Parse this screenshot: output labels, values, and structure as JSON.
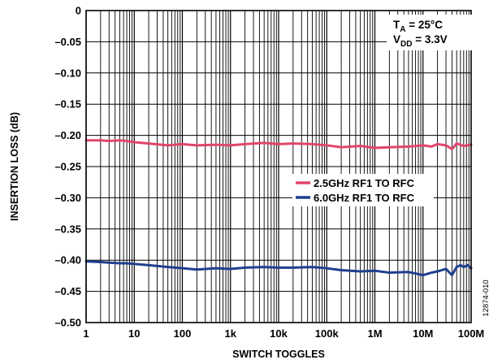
{
  "chart_data": {
    "type": "line",
    "xlabel": "SWITCH TOGGLES",
    "ylabel": "INSERTION LOSS (dB)",
    "xscale": "log",
    "xlim": [
      1,
      100000000
    ],
    "ylim": [
      -0.5,
      0
    ],
    "grid": true,
    "x_ticks": [
      {
        "value": 1,
        "label": "1"
      },
      {
        "value": 10,
        "label": "10"
      },
      {
        "value": 100,
        "label": "100"
      },
      {
        "value": 1000,
        "label": "1k"
      },
      {
        "value": 10000,
        "label": "10k"
      },
      {
        "value": 100000,
        "label": "100k"
      },
      {
        "value": 1000000,
        "label": "1M"
      },
      {
        "value": 10000000,
        "label": "10M"
      },
      {
        "value": 100000000,
        "label": "100M"
      }
    ],
    "y_ticks": [
      {
        "value": 0,
        "label": "0"
      },
      {
        "value": -0.05,
        "label": "–0.05"
      },
      {
        "value": -0.1,
        "label": "–0.10"
      },
      {
        "value": -0.15,
        "label": "–0.15"
      },
      {
        "value": -0.2,
        "label": "–0.20"
      },
      {
        "value": -0.25,
        "label": "–0.25"
      },
      {
        "value": -0.3,
        "label": "–0.30"
      },
      {
        "value": -0.35,
        "label": "–0.35"
      },
      {
        "value": -0.4,
        "label": "–0.40"
      },
      {
        "value": -0.45,
        "label": "–0.45"
      },
      {
        "value": -0.5,
        "label": "–0.50"
      }
    ],
    "annotation": {
      "line1_main": "T",
      "line1_sub": "A",
      "line1_rest": " = 25°C",
      "line2_main": "V",
      "line2_sub": "DD",
      "line2_rest": " = 3.3V"
    },
    "figure_id": "12874-010",
    "legend_position": "center-right",
    "series": [
      {
        "name": "2.5GHz RF1 TO RFC",
        "color": "#e0466a",
        "x": [
          1,
          2,
          3,
          5,
          7,
          10,
          20,
          50,
          100,
          200,
          500,
          1000,
          2000,
          5000,
          10000,
          20000,
          50000,
          100000,
          200000,
          500000,
          1000000,
          2000000,
          5000000,
          10000000,
          15000000,
          20000000,
          30000000,
          40000000,
          50000000,
          70000000,
          100000000
        ],
        "y": [
          -0.208,
          -0.208,
          -0.209,
          -0.208,
          -0.209,
          -0.211,
          -0.213,
          -0.216,
          -0.214,
          -0.216,
          -0.215,
          -0.216,
          -0.214,
          -0.212,
          -0.214,
          -0.213,
          -0.214,
          -0.216,
          -0.219,
          -0.217,
          -0.22,
          -0.219,
          -0.218,
          -0.216,
          -0.218,
          -0.214,
          -0.216,
          -0.222,
          -0.213,
          -0.217,
          -0.215
        ]
      },
      {
        "name": "6.0GHz RF1 TO RFC",
        "color": "#1f3f8f",
        "x": [
          1,
          2,
          3,
          5,
          7,
          10,
          20,
          50,
          100,
          200,
          500,
          1000,
          2000,
          5000,
          10000,
          20000,
          50000,
          100000,
          200000,
          500000,
          1000000,
          2000000,
          5000000,
          10000000,
          15000000,
          20000000,
          30000000,
          40000000,
          50000000,
          60000000,
          70000000,
          85000000,
          100000000
        ],
        "y": [
          -0.402,
          -0.403,
          -0.404,
          -0.405,
          -0.405,
          -0.406,
          -0.408,
          -0.411,
          -0.413,
          -0.415,
          -0.413,
          -0.414,
          -0.412,
          -0.411,
          -0.412,
          -0.412,
          -0.411,
          -0.413,
          -0.416,
          -0.418,
          -0.417,
          -0.42,
          -0.419,
          -0.424,
          -0.42,
          -0.418,
          -0.414,
          -0.424,
          -0.411,
          -0.408,
          -0.411,
          -0.408,
          -0.413
        ]
      }
    ]
  }
}
